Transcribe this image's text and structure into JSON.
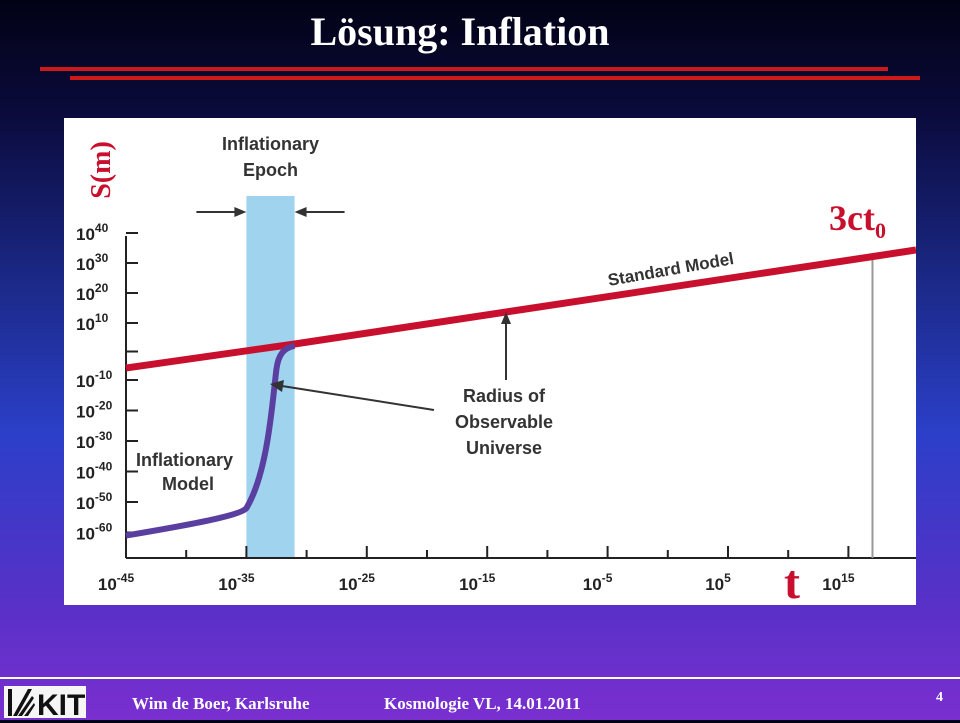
{
  "slide": {
    "title": "Lösung: Inflation",
    "page_number": "4"
  },
  "footer": {
    "author": "Wim de Boer, Karlsruhe",
    "course": "Kosmologie VL, 14.01.2011",
    "logo_text": "KIT"
  },
  "colors": {
    "accent_red": "#cc1a1a",
    "standard_model": "#c8102e",
    "inflationary_model": "#5a3fa0",
    "epoch_band": "#9fd3ee"
  },
  "chart_data": {
    "type": "line",
    "ylabel": "S(m)",
    "xlabel": "t",
    "y_ticks": [
      {
        "base": "10",
        "exp": "40"
      },
      {
        "base": "10",
        "exp": "30"
      },
      {
        "base": "10",
        "exp": "20"
      },
      {
        "base": "10",
        "exp": "10"
      },
      {
        "base": "10",
        "exp": "-10"
      },
      {
        "base": "10",
        "exp": "-20"
      },
      {
        "base": "10",
        "exp": "-30"
      },
      {
        "base": "10",
        "exp": "-40"
      },
      {
        "base": "10",
        "exp": "-50"
      },
      {
        "base": "10",
        "exp": "-60"
      }
    ],
    "x_ticks": [
      {
        "base": "10",
        "exp": "-45"
      },
      {
        "base": "10",
        "exp": "-35"
      },
      {
        "base": "10",
        "exp": "-25"
      },
      {
        "base": "10",
        "exp": "-15"
      },
      {
        "base": "10",
        "exp": "-5"
      },
      {
        "base": "10",
        "exp": "5"
      },
      {
        "base": "10",
        "exp": "15"
      }
    ],
    "inflationary_epoch": {
      "label_line1": "Inflationary",
      "label_line2": "Epoch",
      "t_start_exp": -35,
      "t_end_exp": -31
    },
    "standard_model": {
      "name": "Standard Model",
      "points": [
        [
          -45,
          0
        ],
        [
          -31,
          2
        ],
        [
          20,
          24
        ]
      ]
    },
    "inflationary_model": {
      "label_line1": "Inflationary",
      "label_line2": "Model",
      "points": [
        [
          -45,
          -61
        ],
        [
          -38,
          -57
        ],
        [
          -35,
          -54
        ],
        [
          -33,
          -40
        ],
        [
          -32,
          -6
        ],
        [
          -31,
          2
        ]
      ]
    },
    "annotation": {
      "line1": "Radius of",
      "line2": "Observable",
      "line3": "Universe"
    },
    "marker": {
      "base": "3ct",
      "subscript": "0",
      "t_exp": 17
    }
  }
}
